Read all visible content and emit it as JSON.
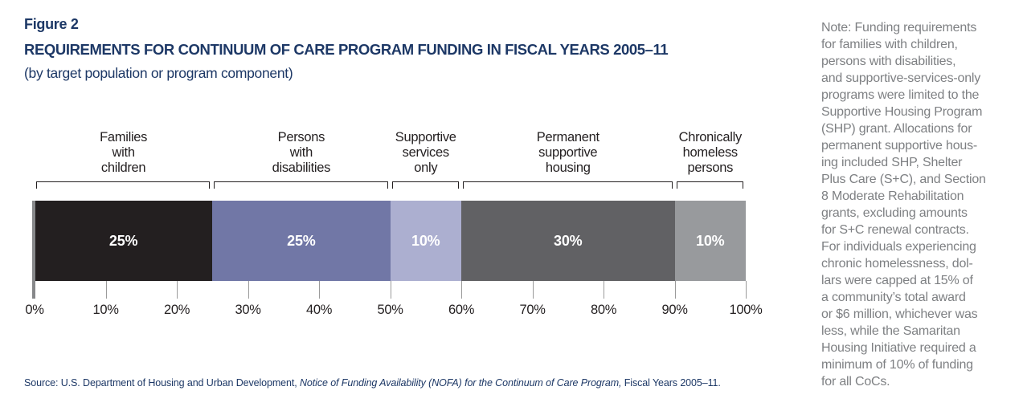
{
  "header": {
    "figure_label": "Figure 2",
    "title": "REQUIREMENTS FOR CONTINUUM OF CARE PROGRAM FUNDING IN FISCAL YEARS 2005–11",
    "subtitle": "(by target population or program component)"
  },
  "chart_data": {
    "type": "bar",
    "subtype": "horizontal-stacked-100pct",
    "title": "Requirements for Continuum of Care Program funding in fiscal years 2005–11",
    "categories": [
      "Families with children",
      "Persons with disabilities",
      "Supportive services only",
      "Permanent supportive housing",
      "Chronically homeless persons"
    ],
    "values": [
      25,
      25,
      10,
      30,
      10
    ],
    "xlabel": "",
    "ylabel": "",
    "xlim": [
      0,
      100
    ],
    "grid": false,
    "legend_position": "none",
    "x_ticks": [
      "0%",
      "10%",
      "20%",
      "30%",
      "40%",
      "50%",
      "60%",
      "70%",
      "80%",
      "90%",
      "100%"
    ],
    "segments": [
      {
        "label": "Families\nwith\nchildren",
        "value": 25,
        "display": "25%",
        "color": "#231F20"
      },
      {
        "label": "Persons\nwith\ndisabilities",
        "value": 25,
        "display": "25%",
        "color": "#7177A6"
      },
      {
        "label": "Supportive\nservices\nonly",
        "value": 10,
        "display": "10%",
        "color": "#ACAFD0"
      },
      {
        "label": "Permanent\nsupportive\nhousing",
        "value": 30,
        "display": "30%",
        "color": "#616164"
      },
      {
        "label": "Chronically\nhomeless\npersons",
        "value": 10,
        "display": "10%",
        "color": "#989A9D"
      }
    ],
    "value_label_color": "#FFFFFF"
  },
  "source": {
    "prefix": "Source: U.S. Department of Housing and Urban Development, ",
    "italic": "Notice of Funding Availability (NOFA) for the Continuum of Care Program,",
    "suffix": " Fiscal Years 2005–11."
  },
  "note": {
    "text": "Note: Funding requirements\nfor families with children,\npersons with disabilities,\nand supportive-services-only\nprograms were limited to the\nSupportive Housing Program\n(SHP) grant. Allocations for\npermanent supportive hous-\ning included SHP, Shelter\nPlus Care (S+C), and Section\n8 Moderate Rehabilitation\ngrants, excluding amounts\nfor S+C renewal contracts.\nFor individuals experiencing\nchronic homelessness, dol-\nlars were capped at 15% of\na community’s total award\nor $6 million, whichever was\nless, while the Samaritan\nHousing Initiative required a\nminimum of 10% of funding\nfor all CoCs."
  },
  "colors": {
    "title_navy": "#1d3866",
    "note_gray": "#7e8083",
    "axis_text": "#231F20",
    "tick_line": "#9b9b9b",
    "zero_axis": "#87888a"
  }
}
